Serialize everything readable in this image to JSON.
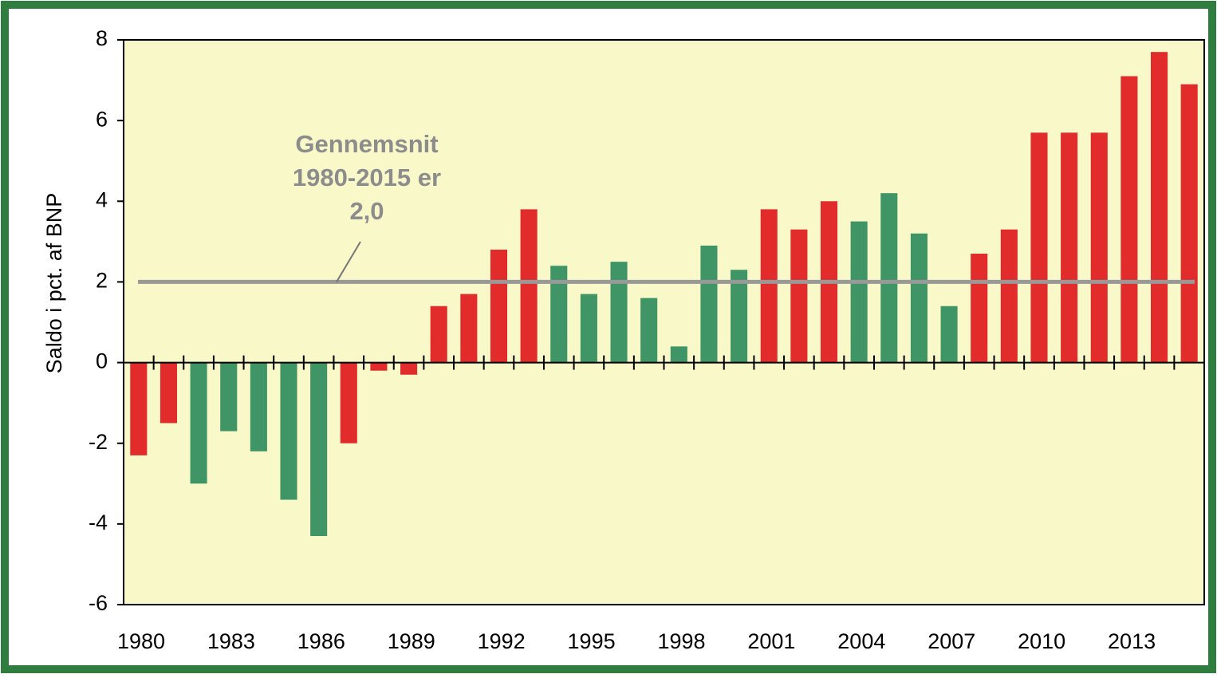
{
  "chart_data": {
    "type": "bar",
    "y_label": "Saldo i pct. af BNP",
    "categories": [
      "1980",
      null,
      null,
      "1983",
      null,
      null,
      "1986",
      null,
      null,
      "1989",
      null,
      null,
      "1992",
      null,
      null,
      "1995",
      null,
      null,
      "1998",
      null,
      null,
      "2001",
      null,
      null,
      "2004",
      null,
      null,
      "2007",
      null,
      null,
      "2010",
      null,
      null,
      "2013",
      null,
      null
    ],
    "values": [
      -2.3,
      -1.5,
      -3.0,
      -1.7,
      -2.2,
      -3.4,
      -4.3,
      -2.0,
      -0.2,
      -0.3,
      1.4,
      1.7,
      2.8,
      3.8,
      2.4,
      1.7,
      2.5,
      1.6,
      0.4,
      2.9,
      2.3,
      3.8,
      3.3,
      4.0,
      3.5,
      4.2,
      3.2,
      1.4,
      2.7,
      3.3,
      5.7,
      5.7,
      5.7,
      7.1,
      7.7,
      6.9
    ],
    "colors": [
      "#e22b2b",
      "#e22b2b",
      "#3f9565",
      "#3f9565",
      "#3f9565",
      "#3f9565",
      "#3f9565",
      "#e22b2b",
      "#e22b2b",
      "#e22b2b",
      "#e22b2b",
      "#e22b2b",
      "#e22b2b",
      "#e22b2b",
      "#3f9565",
      "#3f9565",
      "#3f9565",
      "#3f9565",
      "#3f9565",
      "#3f9565",
      "#3f9565",
      "#e22b2b",
      "#e22b2b",
      "#e22b2b",
      "#3f9565",
      "#3f9565",
      "#3f9565",
      "#3f9565",
      "#e22b2b",
      "#e22b2b",
      "#e22b2b",
      "#e22b2b",
      "#e22b2b",
      "#e22b2b",
      "#e22b2b",
      "#e22b2b"
    ],
    "ylim": [
      -6,
      8
    ],
    "yticks": [
      -6,
      -4,
      -2,
      0,
      2,
      4,
      6,
      8
    ],
    "average_line": {
      "value": 2.0,
      "color": "#999999"
    },
    "annotation": [
      "Gennemsnit",
      "1980-2015 er",
      "2,0"
    ],
    "grid": false,
    "background": "#f8f8c8"
  }
}
